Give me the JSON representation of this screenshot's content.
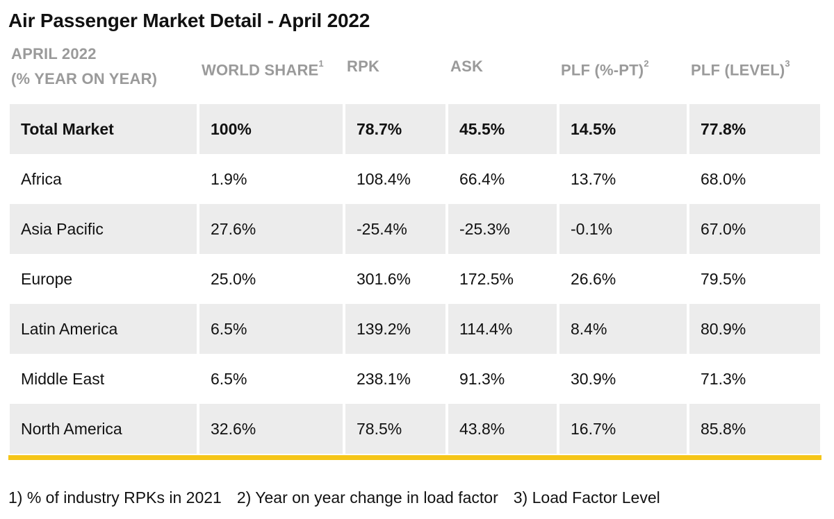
{
  "title": "Air Passenger Market Detail - April 2022",
  "header": {
    "period_line1": "APRIL 2022",
    "period_line2": "(% YEAR ON YEAR)",
    "world_share": "WORLD SHARE",
    "world_share_sup": "1",
    "rpk": "RPK",
    "ask": "ASK",
    "plf_pt": "PLF (%-PT)",
    "plf_pt_sup": "2",
    "plf_level": "PLF (LEVEL)",
    "plf_level_sup": "3"
  },
  "rows": [
    {
      "region": "Total Market",
      "world_share": "100%",
      "rpk": "78.7%",
      "ask": "45.5%",
      "plf_pt": "14.5%",
      "plf_level": "77.8%"
    },
    {
      "region": "Africa",
      "world_share": "1.9%",
      "rpk": "108.4%",
      "ask": "66.4%",
      "plf_pt": "13.7%",
      "plf_level": "68.0%"
    },
    {
      "region": "Asia Pacific",
      "world_share": "27.6%",
      "rpk": "-25.4%",
      "ask": "-25.3%",
      "plf_pt": "-0.1%",
      "plf_level": "67.0%"
    },
    {
      "region": "Europe",
      "world_share": "25.0%",
      "rpk": "301.6%",
      "ask": "172.5%",
      "plf_pt": "26.6%",
      "plf_level": "79.5%"
    },
    {
      "region": "Latin America",
      "world_share": "6.5%",
      "rpk": "139.2%",
      "ask": "114.4%",
      "plf_pt": "8.4%",
      "plf_level": "80.9%"
    },
    {
      "region": "Middle East",
      "world_share": "6.5%",
      "rpk": "238.1%",
      "ask": "91.3%",
      "plf_pt": "30.9%",
      "plf_level": "71.3%"
    },
    {
      "region": "North America",
      "world_share": "32.6%",
      "rpk": "78.5%",
      "ask": "43.8%",
      "plf_pt": "16.7%",
      "plf_level": "85.8%"
    }
  ],
  "footnotes": {
    "note1": "1) % of industry RPKs in 2021",
    "note2": "2) Year on year change in load factor",
    "note3": "3) Load Factor Level"
  },
  "colors": {
    "accent_bar": "#f5c518",
    "shaded_row": "#ececec",
    "header_text": "#9a9a9a"
  }
}
